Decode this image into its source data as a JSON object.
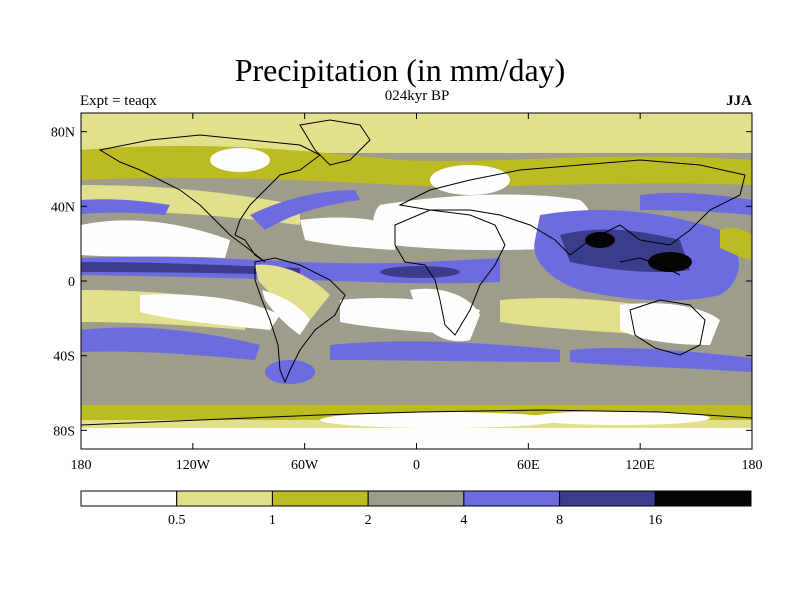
{
  "title": "Precipitation (in mm/day)",
  "subtitle_left": "Expt = teaqx",
  "subtitle_center": "024kyr BP",
  "subtitle_right": "JJA",
  "lat_labels": [
    "80N",
    "40N",
    "0",
    "40S",
    "80S"
  ],
  "lon_labels": [
    "180",
    "120W",
    "60W",
    "0",
    "60E",
    "120E",
    "180"
  ],
  "colorbar": {
    "colors": [
      "#fefefe",
      "#e2e08c",
      "#bcbc22",
      "#9e9c8a",
      "#6c6ce0",
      "#3c3c8c",
      "#050505"
    ],
    "labels": [
      "0.5",
      "1",
      "2",
      "4",
      "8",
      "16"
    ]
  },
  "chart_data": {
    "type": "heatmap",
    "title": "Precipitation (in mm/day)",
    "variable": "precipitation",
    "units": "mm/day",
    "season": "JJA",
    "experiment": "teaqx",
    "period": "024kyr BP",
    "levels": [
      0.5,
      1,
      2,
      4,
      8,
      16
    ],
    "x_range": [
      -180,
      180
    ],
    "y_range": [
      -90,
      90
    ],
    "xticks": [
      -180,
      -120,
      -60,
      0,
      60,
      120,
      180
    ],
    "yticks": [
      80,
      40,
      0,
      -40,
      -80
    ]
  }
}
